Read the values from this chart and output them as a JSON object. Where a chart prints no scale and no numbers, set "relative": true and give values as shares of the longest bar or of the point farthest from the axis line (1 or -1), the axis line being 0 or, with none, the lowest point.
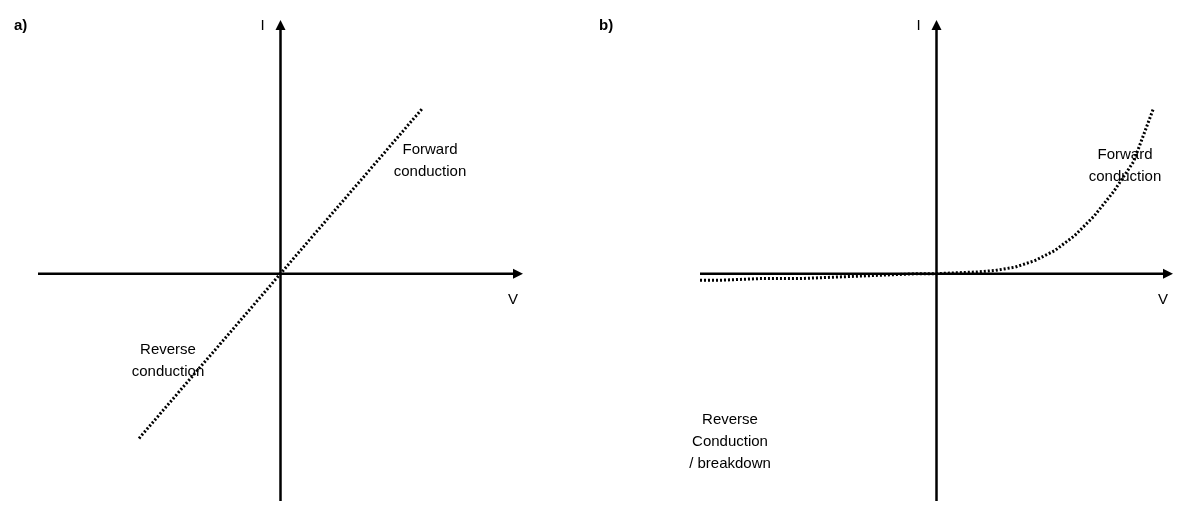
{
  "chart_data": [
    {
      "type": "line",
      "title": "a)",
      "xlabel": "V",
      "ylabel": "I",
      "relative": true,
      "tick_labels": false,
      "grid": false,
      "legend": false,
      "marker": "none",
      "line_style": "dotted",
      "categories": [
        null,
        null,
        null,
        null,
        null,
        null,
        null,
        null,
        null,
        null,
        null,
        null,
        null,
        null,
        null,
        null,
        null,
        null,
        null,
        null,
        null,
        null,
        null,
        null,
        null
      ],
      "series": [
        {
          "color": "#000000",
          "values": [
            null,
            null,
            null,
            null,
            null,
            -1,
            -0.857,
            -0.714,
            -0.571,
            -0.429,
            -0.286,
            -0.143,
            0,
            0.143,
            0.286,
            0.429,
            0.571,
            0.714,
            0.857,
            1,
            null,
            null,
            null,
            null,
            null
          ]
        }
      ],
      "annotations": [
        "Forward conduction",
        "Reverse conduction"
      ]
    },
    {
      "type": "line",
      "title": "b)",
      "xlabel": "V",
      "ylabel": "I",
      "relative": true,
      "tick_labels": false,
      "grid": false,
      "legend": false,
      "marker": "none",
      "line_style": "dotted",
      "categories": [
        null,
        null,
        null,
        null,
        null,
        null,
        null,
        null,
        null,
        null,
        null,
        null,
        null,
        null,
        null,
        null,
        null,
        null,
        null,
        null,
        null,
        null,
        null,
        null,
        null
      ],
      "series": [
        {
          "color": "#000000",
          "values": [
            -0.04,
            -0.04,
            -0.035,
            -0.03,
            -0.03,
            -0.03,
            -0.025,
            -0.02,
            -0.015,
            -0.01,
            -0.005,
            0,
            0,
            0.005,
            0.01,
            0.02,
            0.04,
            0.08,
            0.14,
            0.23,
            0.35,
            0.5,
            0.68,
            1,
            null
          ]
        }
      ],
      "annotations": [
        "Forward conduction",
        "Reverse Conduction / breakdown"
      ]
    }
  ]
}
